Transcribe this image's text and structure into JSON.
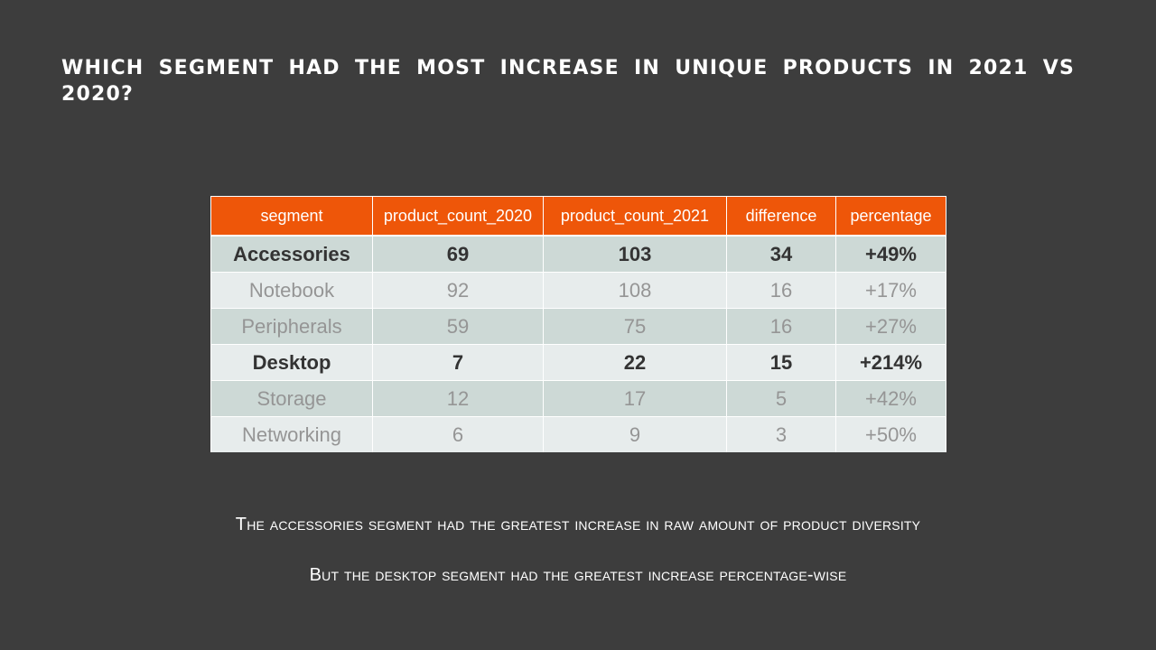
{
  "slide": {
    "title": "WHICH SEGMENT HAD THE MOST INCREASE IN UNIQUE PRODUCTS IN 2021 VS 2020?"
  },
  "table": {
    "headers": [
      "segment",
      "product_count_2020",
      "product_count_2021",
      "difference",
      "percentage"
    ],
    "rows": [
      {
        "segment": "Accessories",
        "product_count_2020": "69",
        "product_count_2021": "103",
        "difference": "34",
        "percentage": "+49%"
      },
      {
        "segment": "Notebook",
        "product_count_2020": "92",
        "product_count_2021": "108",
        "difference": "16",
        "percentage": "+17%"
      },
      {
        "segment": "Peripherals",
        "product_count_2020": "59",
        "product_count_2021": "75",
        "difference": "16",
        "percentage": "+27%"
      },
      {
        "segment": "Desktop",
        "product_count_2020": "7",
        "product_count_2021": "22",
        "difference": "15",
        "percentage": "+214%"
      },
      {
        "segment": "Storage",
        "product_count_2020": "12",
        "product_count_2021": "17",
        "difference": "5",
        "percentage": "+42%"
      },
      {
        "segment": "Networking",
        "product_count_2020": "6",
        "product_count_2021": "9",
        "difference": "3",
        "percentage": "+50%"
      }
    ],
    "header_color": "#ee5609",
    "row_band_colors": [
      "#cdd9d6",
      "#e7ecec"
    ],
    "emphasis_text_color": "#333333",
    "muted_text_color": "#959595"
  },
  "captions": [
    "The accessories segment had the greatest increase in raw amount of product diversity",
    "But the desktop segment had the greatest increase percentage-wise"
  ]
}
